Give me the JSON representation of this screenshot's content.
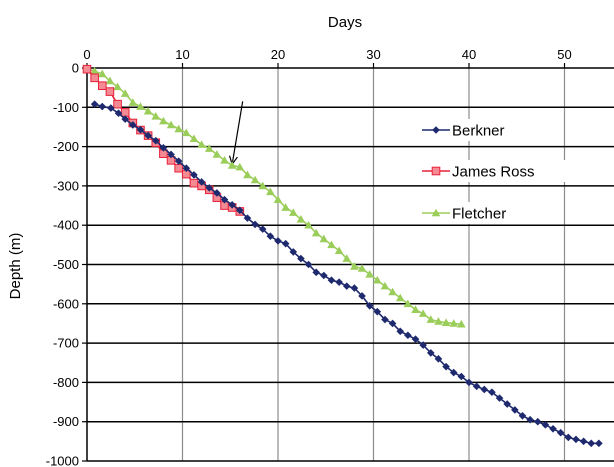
{
  "chart_data": {
    "type": "line",
    "xlabel": "Days",
    "ylabel": "Depth (m)",
    "xlim": [
      0,
      54
    ],
    "ylim": [
      -1000,
      0
    ],
    "x_ticks": [
      0,
      10,
      20,
      30,
      40,
      50
    ],
    "y_ticks": [
      0,
      -100,
      -200,
      -300,
      -400,
      -500,
      -600,
      -700,
      -800,
      -900,
      -1000
    ],
    "x_axis_position": "top",
    "grid": {
      "vertical": true,
      "horizontal": true
    },
    "legend": {
      "position": "right"
    },
    "annotation": {
      "type": "arrow",
      "from": [
        16.3,
        -85
      ],
      "to": [
        15.2,
        -245
      ]
    },
    "series": [
      {
        "name": "Berkner",
        "color": "#1F2A6E",
        "marker": "diamond",
        "x": [
          0.8,
          1.6,
          2.5,
          3.3,
          4.0,
          4.8,
          5.6,
          6.4,
          7.2,
          8.0,
          8.8,
          9.6,
          10.4,
          11.2,
          12.0,
          12.8,
          13.6,
          14.4,
          15.2,
          16.0,
          16.8,
          17.6,
          18.4,
          19.2,
          20.0,
          20.8,
          21.6,
          22.4,
          23.2,
          24.0,
          24.8,
          25.6,
          26.4,
          27.2,
          28.0,
          28.8,
          29.6,
          30.4,
          31.2,
          32.0,
          32.8,
          33.6,
          34.4,
          35.2,
          36.0,
          36.8,
          37.6,
          38.4,
          39.2,
          40.0,
          40.8,
          41.6,
          42.4,
          43.2,
          44.0,
          44.8,
          45.6,
          46.4,
          47.2,
          48.0,
          48.8,
          49.6,
          50.4,
          51.2,
          52.0,
          52.8,
          53.6
        ],
        "values": [
          -92,
          -98,
          -102,
          -115,
          -130,
          -145,
          -157,
          -172,
          -185,
          -203,
          -220,
          -237,
          -255,
          -272,
          -290,
          -305,
          -318,
          -335,
          -348,
          -362,
          -382,
          -398,
          -410,
          -428,
          -440,
          -447,
          -468,
          -485,
          -500,
          -520,
          -528,
          -540,
          -545,
          -555,
          -560,
          -580,
          -605,
          -620,
          -640,
          -650,
          -670,
          -680,
          -690,
          -705,
          -725,
          -740,
          -760,
          -775,
          -785,
          -800,
          -810,
          -818,
          -825,
          -840,
          -855,
          -870,
          -885,
          -895,
          -900,
          -908,
          -918,
          -928,
          -940,
          -945,
          -950,
          -955,
          -955
        ]
      },
      {
        "name": "James Ross",
        "color": "#E8213A",
        "marker": "square",
        "x": [
          0.0,
          0.8,
          1.6,
          2.4,
          3.2,
          4.0,
          4.8,
          5.6,
          6.4,
          7.2,
          8.0,
          8.8,
          9.6,
          10.4,
          11.2,
          12.0,
          12.8,
          13.6,
          14.4,
          15.2,
          16.0
        ],
        "values": [
          -3,
          -25,
          -45,
          -60,
          -92,
          -113,
          -140,
          -158,
          -172,
          -190,
          -218,
          -235,
          -255,
          -270,
          -293,
          -300,
          -310,
          -330,
          -350,
          -355,
          -365
        ]
      },
      {
        "name": "Fletcher",
        "color": "#9BCD5A",
        "marker": "triangle",
        "x": [
          0.0,
          0.8,
          1.6,
          2.4,
          3.2,
          4.0,
          4.8,
          5.6,
          6.4,
          7.2,
          8.0,
          8.8,
          9.6,
          10.4,
          11.2,
          12.0,
          12.8,
          13.6,
          14.4,
          15.2,
          16.0,
          16.8,
          17.6,
          18.4,
          19.2,
          20.0,
          20.8,
          21.6,
          22.4,
          23.2,
          24.0,
          24.8,
          25.6,
          26.4,
          27.2,
          28.0,
          28.8,
          29.6,
          30.4,
          31.2,
          32.0,
          32.8,
          33.6,
          34.4,
          35.2,
          36.0,
          36.8,
          37.6,
          38.4,
          39.2
        ],
        "values": [
          -2,
          -8,
          -15,
          -33,
          -48,
          -65,
          -88,
          -98,
          -110,
          -123,
          -135,
          -145,
          -155,
          -165,
          -180,
          -195,
          -205,
          -220,
          -235,
          -248,
          -252,
          -272,
          -285,
          -300,
          -315,
          -335,
          -355,
          -368,
          -385,
          -400,
          -420,
          -435,
          -450,
          -465,
          -485,
          -505,
          -510,
          -525,
          -540,
          -555,
          -570,
          -585,
          -600,
          -615,
          -625,
          -640,
          -645,
          -648,
          -650,
          -652
        ]
      }
    ]
  }
}
